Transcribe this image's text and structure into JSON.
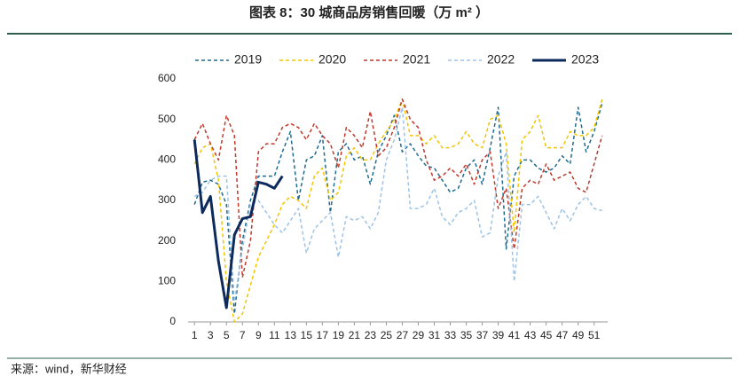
{
  "chart_data": {
    "type": "line",
    "title": "图表 8：30 城商品房销售回暖（万 m² ）",
    "source": "来源：wind，新华财经",
    "x": [
      1,
      2,
      3,
      4,
      5,
      6,
      7,
      8,
      9,
      10,
      11,
      12,
      13,
      14,
      15,
      16,
      17,
      18,
      19,
      20,
      21,
      22,
      23,
      24,
      25,
      26,
      27,
      28,
      29,
      30,
      31,
      32,
      33,
      34,
      35,
      36,
      37,
      38,
      39,
      40,
      41,
      42,
      43,
      44,
      45,
      46,
      47,
      48,
      49,
      50,
      51,
      52
    ],
    "xlim": [
      0.2,
      52.7
    ],
    "xticks": [
      1,
      3,
      5,
      7,
      9,
      11,
      13,
      15,
      17,
      19,
      21,
      23,
      25,
      27,
      29,
      31,
      33,
      35,
      37,
      39,
      41,
      43,
      45,
      47,
      49,
      51
    ],
    "ylim": [
      0,
      600
    ],
    "yticks": [
      0,
      100,
      200,
      300,
      400,
      500,
      600
    ],
    "grid": false,
    "legend": "top",
    "series": [
      {
        "name": "2019",
        "color": "#1f6b8e",
        "dash": true,
        "width": 1.5,
        "values": [
          290,
          345,
          350,
          340,
          290,
          20,
          200,
          300,
          360,
          360,
          360,
          420,
          470,
          300,
          400,
          410,
          460,
          270,
          420,
          440,
          400,
          410,
          340,
          420,
          460,
          510,
          420,
          440,
          410,
          385,
          380,
          350,
          320,
          330,
          380,
          400,
          340,
          430,
          530,
          180,
          360,
          400,
          400,
          380,
          370,
          380,
          410,
          390,
          530,
          420,
          470,
          540
        ]
      },
      {
        "name": "2020",
        "color": "#f2c500",
        "dash": true,
        "width": 1.5,
        "values": [
          390,
          430,
          440,
          350,
          100,
          0,
          20,
          90,
          160,
          200,
          240,
          290,
          310,
          300,
          280,
          360,
          380,
          300,
          320,
          410,
          430,
          400,
          400,
          440,
          470,
          500,
          550,
          460,
          460,
          440,
          460,
          430,
          430,
          440,
          470,
          440,
          430,
          500,
          510,
          440,
          220,
          450,
          470,
          510,
          430,
          430,
          430,
          470,
          460,
          460,
          480,
          550
        ]
      },
      {
        "name": "2021",
        "color": "#c0392b",
        "dash": true,
        "width": 1.5,
        "values": [
          450,
          490,
          440,
          400,
          510,
          460,
          110,
          200,
          420,
          440,
          440,
          480,
          490,
          480,
          450,
          490,
          460,
          440,
          380,
          480,
          460,
          430,
          520,
          410,
          430,
          480,
          550,
          500,
          480,
          400,
          350,
          360,
          380,
          360,
          390,
          340,
          400,
          420,
          280,
          330,
          180,
          330,
          350,
          340,
          390,
          350,
          360,
          370,
          330,
          320,
          390,
          460
        ]
      },
      {
        "name": "2022",
        "color": "#9dc3e6",
        "dash": true,
        "width": 1.5,
        "values": [
          310,
          320,
          350,
          360,
          360,
          50,
          180,
          290,
          300,
          270,
          240,
          220,
          250,
          280,
          170,
          230,
          250,
          270,
          160,
          260,
          250,
          260,
          230,
          270,
          400,
          450,
          530,
          280,
          280,
          290,
          330,
          260,
          240,
          270,
          280,
          300,
          210,
          220,
          360,
          420,
          100,
          290,
          290,
          310,
          270,
          230,
          280,
          250,
          290,
          310,
          280,
          275
        ]
      },
      {
        "name": "2023",
        "color": "#0d2a5c",
        "dash": false,
        "width": 3,
        "values": [
          450,
          270,
          310,
          150,
          35,
          215,
          255,
          260,
          345,
          340,
          330,
          360,
          null,
          null,
          null,
          null,
          null,
          null,
          null,
          null,
          null,
          null,
          null,
          null,
          null,
          null,
          null,
          null,
          null,
          null,
          null,
          null,
          null,
          null,
          null,
          null,
          null,
          null,
          null,
          null,
          null,
          null,
          null,
          null,
          null,
          null,
          null,
          null,
          null,
          null,
          null,
          null
        ]
      }
    ]
  }
}
